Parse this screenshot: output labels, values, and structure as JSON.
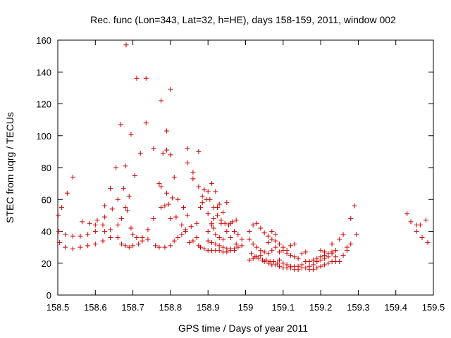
{
  "chart_data": {
    "type": "scatter",
    "title": "Rec. func (Lon=343, Lat=32, h=HE), days 158-159, 2011, window 002",
    "xlabel": "GPS time / Days of year 2011",
    "ylabel": "STEC from uqrg / TECUs",
    "xlim": [
      158.5,
      159.5
    ],
    "ylim": [
      0,
      160
    ],
    "x_ticks": [
      158.5,
      158.6,
      158.7,
      158.8,
      158.9,
      159,
      159.1,
      159.2,
      159.3,
      159.4,
      159.5
    ],
    "x_tick_labels": [
      "158.5",
      "158.6",
      "158.7",
      "158.8",
      "158.9",
      "159",
      "159.1",
      "159.2",
      "159.3",
      "159.4",
      "159.5"
    ],
    "y_ticks": [
      0,
      20,
      40,
      60,
      80,
      100,
      120,
      140,
      160
    ],
    "y_tick_labels": [
      "0",
      "20",
      "40",
      "60",
      "80",
      "100",
      "120",
      "140",
      "160"
    ],
    "grid": false,
    "marker": "+",
    "marker_color": "#cc0000",
    "series": [
      {
        "name": "STEC",
        "points": [
          [
            158.501,
            50
          ],
          [
            158.51,
            55
          ],
          [
            158.525,
            64
          ],
          [
            158.54,
            74
          ],
          [
            158.503,
            40
          ],
          [
            158.52,
            38
          ],
          [
            158.54,
            37
          ],
          [
            158.56,
            37
          ],
          [
            158.58,
            38
          ],
          [
            158.6,
            40
          ],
          [
            158.62,
            44
          ],
          [
            158.505,
            33
          ],
          [
            158.52,
            30
          ],
          [
            158.54,
            29
          ],
          [
            158.56,
            30
          ],
          [
            158.58,
            31
          ],
          [
            158.6,
            32
          ],
          [
            158.62,
            34
          ],
          [
            158.64,
            36
          ],
          [
            158.565,
            46
          ],
          [
            158.585,
            45
          ],
          [
            158.605,
            47
          ],
          [
            158.625,
            49
          ],
          [
            158.645,
            54
          ],
          [
            158.66,
            60
          ],
          [
            158.675,
            67
          ],
          [
            158.6,
            44
          ],
          [
            158.625,
            56
          ],
          [
            158.64,
            67
          ],
          [
            158.655,
            80
          ],
          [
            158.668,
            107
          ],
          [
            158.682,
            157
          ],
          [
            158.695,
            101
          ],
          [
            158.71,
            136
          ],
          [
            158.735,
            136
          ],
          [
            158.755,
            92
          ],
          [
            158.775,
            122
          ],
          [
            158.8,
            129
          ],
          [
            158.79,
            103
          ],
          [
            158.625,
            40
          ],
          [
            158.64,
            41
          ],
          [
            158.66,
            44
          ],
          [
            158.67,
            48
          ],
          [
            158.68,
            55
          ],
          [
            158.69,
            62
          ],
          [
            158.705,
            75
          ],
          [
            158.72,
            89
          ],
          [
            158.735,
            108
          ],
          [
            158.66,
            36
          ],
          [
            158.67,
            32
          ],
          [
            158.68,
            31
          ],
          [
            158.69,
            30
          ],
          [
            158.7,
            31
          ],
          [
            158.715,
            32
          ],
          [
            158.725,
            34
          ],
          [
            158.74,
            35
          ],
          [
            158.68,
            81
          ],
          [
            158.685,
            53
          ],
          [
            158.695,
            42
          ],
          [
            158.7,
            38
          ],
          [
            158.71,
            36
          ],
          [
            158.725,
            36
          ],
          [
            158.74,
            41
          ],
          [
            158.755,
            48
          ],
          [
            158.76,
            31
          ],
          [
            158.77,
            30
          ],
          [
            158.785,
            30
          ],
          [
            158.8,
            31
          ],
          [
            158.81,
            34
          ],
          [
            158.82,
            36
          ],
          [
            158.83,
            38
          ],
          [
            158.84,
            40
          ],
          [
            158.77,
            70
          ],
          [
            158.78,
            89
          ],
          [
            158.79,
            91
          ],
          [
            158.8,
            88
          ],
          [
            158.81,
            74
          ],
          [
            158.82,
            60
          ],
          [
            158.835,
            55
          ],
          [
            158.845,
            50
          ],
          [
            158.775,
            55
          ],
          [
            158.785,
            56
          ],
          [
            158.795,
            57
          ],
          [
            158.805,
            61
          ],
          [
            158.815,
            49
          ],
          [
            158.83,
            44
          ],
          [
            158.84,
            41
          ],
          [
            158.775,
            68
          ],
          [
            158.79,
            64
          ],
          [
            158.8,
            48
          ],
          [
            158.845,
            92
          ],
          [
            158.845,
            83
          ],
          [
            158.86,
            77
          ],
          [
            158.86,
            73
          ],
          [
            158.875,
            90
          ],
          [
            158.85,
            33
          ],
          [
            158.86,
            34
          ],
          [
            158.87,
            36
          ],
          [
            158.875,
            31
          ],
          [
            158.88,
            30
          ],
          [
            158.89,
            29
          ],
          [
            158.9,
            28
          ],
          [
            158.91,
            28
          ],
          [
            158.855,
            43
          ],
          [
            158.87,
            45
          ],
          [
            158.88,
            55
          ],
          [
            158.885,
            62
          ],
          [
            158.89,
            66
          ],
          [
            158.895,
            60
          ],
          [
            158.9,
            65
          ],
          [
            158.91,
            70
          ],
          [
            158.875,
            68
          ],
          [
            158.885,
            58
          ],
          [
            158.9,
            51
          ],
          [
            158.91,
            45
          ],
          [
            158.915,
            42
          ],
          [
            158.92,
            38
          ],
          [
            158.93,
            36
          ],
          [
            158.94,
            35
          ],
          [
            158.905,
            60
          ],
          [
            158.915,
            55
          ],
          [
            158.925,
            50
          ],
          [
            158.935,
            47
          ],
          [
            158.945,
            45
          ],
          [
            158.955,
            44
          ],
          [
            158.965,
            46
          ],
          [
            158.975,
            47
          ],
          [
            158.92,
            65
          ],
          [
            158.93,
            57
          ],
          [
            158.94,
            52
          ],
          [
            158.95,
            58
          ],
          [
            158.96,
            45
          ],
          [
            158.97,
            40
          ],
          [
            158.98,
            38
          ],
          [
            158.99,
            35
          ],
          [
            158.92,
            28
          ],
          [
            158.93,
            28
          ],
          [
            158.94,
            27
          ],
          [
            158.95,
            27
          ],
          [
            158.96,
            28
          ],
          [
            158.97,
            29
          ],
          [
            158.98,
            30
          ],
          [
            158.99,
            31
          ],
          [
            158.9,
            34
          ],
          [
            158.91,
            33
          ],
          [
            158.92,
            32
          ],
          [
            158.93,
            31
          ],
          [
            158.94,
            30
          ],
          [
            158.95,
            29
          ],
          [
            158.96,
            29
          ],
          [
            158.97,
            28
          ],
          [
            158.9,
            40
          ],
          [
            158.91,
            44
          ],
          [
            158.915,
            48
          ],
          [
            158.925,
            55
          ],
          [
            158.935,
            45
          ],
          [
            158.95,
            40
          ],
          [
            158.96,
            36
          ],
          [
            158.975,
            32
          ],
          [
            159.01,
            40
          ],
          [
            159.02,
            44
          ],
          [
            159.03,
            45
          ],
          [
            159.04,
            42
          ],
          [
            159.05,
            39
          ],
          [
            159.06,
            37
          ],
          [
            159.07,
            40
          ],
          [
            159.08,
            38
          ],
          [
            159.01,
            35
          ],
          [
            159.02,
            32
          ],
          [
            159.03,
            30
          ],
          [
            159.04,
            28
          ],
          [
            159.05,
            27
          ],
          [
            159.06,
            26
          ],
          [
            159.07,
            28
          ],
          [
            159.08,
            30
          ],
          [
            159.015,
            26
          ],
          [
            159.025,
            24
          ],
          [
            159.035,
            23
          ],
          [
            159.045,
            22
          ],
          [
            159.055,
            22
          ],
          [
            159.065,
            21
          ],
          [
            159.075,
            21
          ],
          [
            159.085,
            20
          ],
          [
            159.01,
            22
          ],
          [
            159.02,
            23
          ],
          [
            159.03,
            24
          ],
          [
            159.04,
            25
          ],
          [
            159.05,
            21
          ],
          [
            159.06,
            20
          ],
          [
            159.07,
            19
          ],
          [
            159.08,
            19
          ],
          [
            159.06,
            33
          ],
          [
            159.07,
            35
          ],
          [
            159.08,
            34
          ],
          [
            159.09,
            32
          ],
          [
            159.1,
            30
          ],
          [
            159.11,
            28
          ],
          [
            159.12,
            31
          ],
          [
            159.13,
            32
          ],
          [
            159.09,
            22
          ],
          [
            159.1,
            20
          ],
          [
            159.11,
            19
          ],
          [
            159.12,
            18
          ],
          [
            159.13,
            18
          ],
          [
            159.14,
            18
          ],
          [
            159.15,
            19
          ],
          [
            159.16,
            21
          ],
          [
            159.09,
            18
          ],
          [
            159.1,
            17
          ],
          [
            159.11,
            17
          ],
          [
            159.12,
            17
          ],
          [
            159.13,
            16
          ],
          [
            159.14,
            16
          ],
          [
            159.15,
            17
          ],
          [
            159.16,
            17
          ],
          [
            159.09,
            27
          ],
          [
            159.1,
            28
          ],
          [
            159.11,
            26
          ],
          [
            159.12,
            25
          ],
          [
            159.13,
            24
          ],
          [
            159.14,
            23
          ],
          [
            159.15,
            26
          ],
          [
            159.16,
            27
          ],
          [
            159.17,
            16
          ],
          [
            159.18,
            16
          ],
          [
            159.19,
            17
          ],
          [
            159.2,
            18
          ],
          [
            159.21,
            19
          ],
          [
            159.22,
            20
          ],
          [
            159.23,
            21
          ],
          [
            159.24,
            21
          ],
          [
            159.17,
            21
          ],
          [
            159.18,
            22
          ],
          [
            159.19,
            23
          ],
          [
            159.2,
            24
          ],
          [
            159.21,
            25
          ],
          [
            159.22,
            26
          ],
          [
            159.23,
            27
          ],
          [
            159.24,
            28
          ],
          [
            159.17,
            18
          ],
          [
            159.18,
            19
          ],
          [
            159.19,
            21
          ],
          [
            159.2,
            22
          ],
          [
            159.21,
            23
          ],
          [
            159.22,
            24
          ],
          [
            159.23,
            26
          ],
          [
            159.24,
            24
          ],
          [
            159.2,
            28
          ],
          [
            159.21,
            27
          ],
          [
            159.23,
            32
          ],
          [
            159.25,
            35
          ],
          [
            159.26,
            38
          ],
          [
            159.27,
            30
          ],
          [
            159.28,
            48
          ],
          [
            159.29,
            56
          ],
          [
            159.25,
            21
          ],
          [
            159.26,
            25
          ],
          [
            159.27,
            28
          ],
          [
            159.28,
            32
          ],
          [
            159.295,
            38
          ],
          [
            159.43,
            51
          ],
          [
            159.44,
            46
          ],
          [
            159.455,
            44
          ],
          [
            159.465,
            44
          ],
          [
            159.48,
            47
          ],
          [
            159.455,
            40
          ],
          [
            159.47,
            36
          ],
          [
            159.485,
            33
          ]
        ]
      }
    ]
  }
}
